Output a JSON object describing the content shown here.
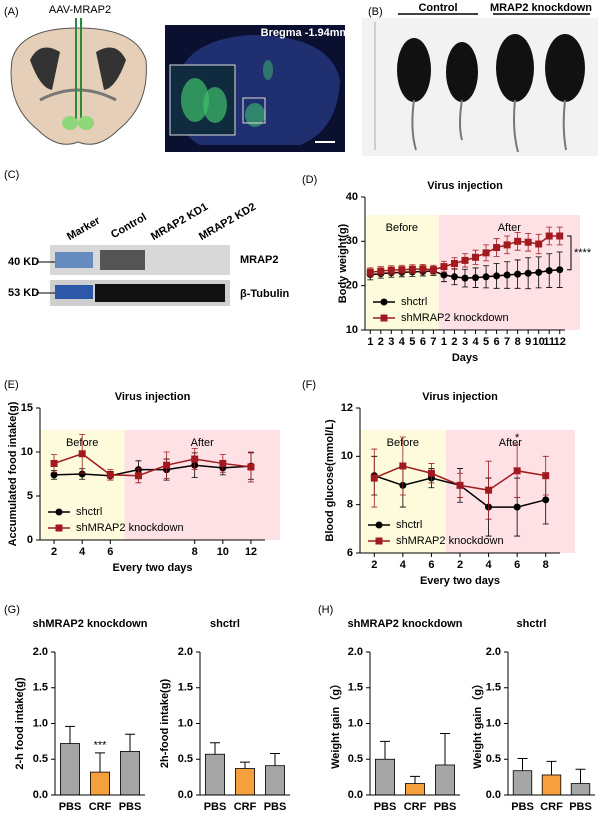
{
  "panels": {
    "a": {
      "label": "(A)",
      "virus": "AAV-MRAP2",
      "bregma": "Bregma -1.94mm"
    },
    "b": {
      "label": "(B)",
      "groups": [
        "Control",
        "MRAP2 knockdown"
      ]
    },
    "c": {
      "label": "(C)",
      "lanes": [
        "Marker",
        "Control",
        "MRAP2 KD1",
        "MRAP2 KD2"
      ],
      "sizes": [
        "40 KD",
        "53 KD"
      ],
      "proteins": [
        "MRAP2",
        "β-Tubulin"
      ]
    }
  },
  "chart_data": [
    {
      "type": "line",
      "panel": "(D)",
      "title": "Virus injection",
      "xlabel": "Days",
      "ylabel": "Body weight(g)",
      "groups": [
        {
          "label": "Before",
          "color": "#fdfbdc",
          "categories": [
            "1",
            "2",
            "3",
            "4",
            "5",
            "6",
            "7"
          ]
        },
        {
          "label": "After",
          "color": "#fde1e4",
          "categories": [
            "1",
            "2",
            "3",
            "4",
            "5",
            "6",
            "7",
            "8",
            "9",
            "10",
            "11",
            "12"
          ]
        }
      ],
      "ylim": [
        10,
        40
      ],
      "yticks": [
        10,
        20,
        30,
        40
      ],
      "legend": "lower left",
      "significance": "****",
      "series": [
        {
          "name": "shctrl",
          "color": "#000000",
          "marker": "circle",
          "values": [
            22.5,
            22.7,
            22.9,
            23.0,
            23.1,
            23.2,
            23.3,
            22.4,
            22.0,
            21.7,
            21.8,
            22.0,
            22.2,
            22.4,
            22.6,
            22.8,
            23.0,
            23.4,
            23.6
          ],
          "errors": [
            1.2,
            1.0,
            1.0,
            1.0,
            1.0,
            1.0,
            1.0,
            1.5,
            1.8,
            2.0,
            2.2,
            2.5,
            2.8,
            3.0,
            3.2,
            3.5,
            3.5,
            3.8,
            4.0
          ]
        },
        {
          "name": "shMRAP2 knockdown",
          "color": "#a11a1f",
          "marker": "square",
          "values": [
            23.0,
            23.3,
            23.5,
            23.6,
            23.7,
            23.8,
            23.6,
            24.3,
            25.0,
            25.7,
            26.4,
            27.4,
            28.6,
            29.2,
            30.0,
            29.8,
            29.4,
            31.2,
            31.2
          ],
          "errors": [
            1.0,
            1.0,
            1.0,
            1.0,
            1.0,
            1.0,
            1.0,
            1.2,
            1.3,
            1.5,
            1.6,
            1.8,
            2.0,
            2.0,
            2.0,
            2.0,
            2.2,
            2.0,
            2.0
          ]
        }
      ]
    },
    {
      "type": "line",
      "panel": "(E)",
      "title": "Virus injection",
      "xlabel": "Every two days",
      "ylabel": "Accumulated food intake(g)",
      "groups": [
        {
          "label": "Before",
          "color": "#fdfbdc",
          "categories": [
            "2",
            "4",
            "6"
          ]
        },
        {
          "label": "After",
          "color": "#fde1e4",
          "categories": [
            null,
            null,
            "8",
            "10",
            "12"
          ]
        }
      ],
      "ylim": [
        0,
        15
      ],
      "yticks": [
        0,
        5,
        10,
        15
      ],
      "legend": "lower left",
      "series": [
        {
          "name": "shctrl",
          "color": "#000000",
          "marker": "circle",
          "values": [
            7.4,
            7.5,
            7.3,
            8.0,
            8.0,
            8.5,
            8.2,
            8.4
          ],
          "errors": [
            0.5,
            0.6,
            0.5,
            1.0,
            1.2,
            1.4,
            0.8,
            1.5
          ]
        },
        {
          "name": "shMRAP2 knockdown",
          "color": "#a11a1f",
          "marker": "square",
          "values": [
            8.7,
            9.8,
            7.4,
            7.3,
            8.5,
            9.2,
            8.7,
            8.3
          ],
          "errors": [
            1.0,
            2.2,
            0.6,
            0.8,
            1.5,
            1.2,
            1.0,
            1.7
          ]
        }
      ]
    },
    {
      "type": "line",
      "panel": "(F)",
      "title": "Virus injection",
      "xlabel": "Every two days",
      "ylabel": "Blood glucose(mmol/L)",
      "groups": [
        {
          "label": "Before",
          "color": "#fdfbdc",
          "categories": [
            "2",
            "4",
            "6"
          ]
        },
        {
          "label": "After",
          "color": "#fde1e4",
          "categories": [
            "2",
            "4",
            "6",
            "8"
          ]
        }
      ],
      "ylim": [
        6,
        12
      ],
      "yticks": [
        6,
        8,
        10,
        12
      ],
      "legend": "lower left",
      "significance": "*",
      "series": [
        {
          "name": "shctrl",
          "color": "#000000",
          "marker": "circle",
          "values": [
            9.2,
            8.8,
            9.1,
            8.8,
            7.9,
            7.9,
            8.2
          ],
          "errors": [
            0.8,
            0.9,
            0.4,
            0.7,
            1.2,
            1.2,
            1.0
          ]
        },
        {
          "name": "shMRAP2 knockdown",
          "color": "#a11a1f",
          "marker": "square",
          "values": [
            9.1,
            9.6,
            9.3,
            8.8,
            8.6,
            9.4,
            9.2
          ],
          "errors": [
            1.2,
            1.2,
            0.4,
            0.5,
            1.2,
            1.1,
            0.8
          ]
        }
      ]
    },
    {
      "type": "bar",
      "panel": "(G)",
      "title": "shMRAP2 knockdown",
      "ylabel": "2-h food intake(g)",
      "categories": [
        "PBS",
        "CRF",
        "PBS"
      ],
      "values": [
        0.72,
        0.32,
        0.61
      ],
      "errors": [
        0.24,
        0.27,
        0.24
      ],
      "colors": [
        "#a6a6a6",
        "#f5a03c",
        "#a6a6a6"
      ],
      "significance": "***",
      "ylim": [
        0,
        2
      ],
      "yticks": [
        {
          "value": 0,
          "label": "0.0"
        },
        {
          "value": 0.5,
          "label": "0.5"
        },
        {
          "value": 1,
          "label": "1.0"
        },
        {
          "value": 1.5,
          "label": "1.5"
        },
        {
          "value": 2,
          "label": "2.0"
        }
      ]
    },
    {
      "type": "bar",
      "title": "shctrl",
      "ylabel": "2h-food intake(g)",
      "categories": [
        "PBS",
        "CRF",
        "PBS"
      ],
      "values": [
        0.57,
        0.37,
        0.41
      ],
      "errors": [
        0.16,
        0.09,
        0.17
      ],
      "colors": [
        "#a6a6a6",
        "#f5a03c",
        "#a6a6a6"
      ],
      "ylim": [
        0,
        2
      ],
      "yticks": [
        {
          "value": 0,
          "label": "0.0"
        },
        {
          "value": 0.5,
          "label": "0.5"
        },
        {
          "value": 1,
          "label": "1.0"
        },
        {
          "value": 1.5,
          "label": "1.5"
        },
        {
          "value": 2,
          "label": "2.0"
        }
      ]
    },
    {
      "type": "bar",
      "panel": "(H)",
      "title": "shMRAP2 knockdown",
      "ylabel": "Weight gain（g）",
      "categories": [
        "PBS",
        "CRF",
        "PBS"
      ],
      "values": [
        0.5,
        0.16,
        0.42
      ],
      "errors": [
        0.25,
        0.1,
        0.44
      ],
      "colors": [
        "#a6a6a6",
        "#f5a03c",
        "#a6a6a6"
      ],
      "ylim": [
        0,
        2
      ],
      "yticks": [
        {
          "value": 0,
          "label": "0.0"
        },
        {
          "value": 0.5,
          "label": "0.5"
        },
        {
          "value": 1,
          "label": "1.0"
        },
        {
          "value": 1.5,
          "label": "1.5"
        },
        {
          "value": 2,
          "label": "2.0"
        }
      ]
    },
    {
      "type": "bar",
      "title": "shctrl",
      "ylabel": "Weight gain（g）",
      "categories": [
        "PBS",
        "CRF",
        "PBS"
      ],
      "values": [
        0.34,
        0.28,
        0.16
      ],
      "errors": [
        0.17,
        0.19,
        0.2
      ],
      "colors": [
        "#a6a6a6",
        "#f5a03c",
        "#a6a6a6"
      ],
      "ylim": [
        0,
        2
      ],
      "yticks": [
        {
          "value": 0,
          "label": "0.0"
        },
        {
          "value": 0.5,
          "label": "0.5"
        },
        {
          "value": 1,
          "label": "1.0"
        },
        {
          "value": 1.5,
          "label": "1.5"
        },
        {
          "value": 2,
          "label": "2.0"
        }
      ]
    }
  ]
}
